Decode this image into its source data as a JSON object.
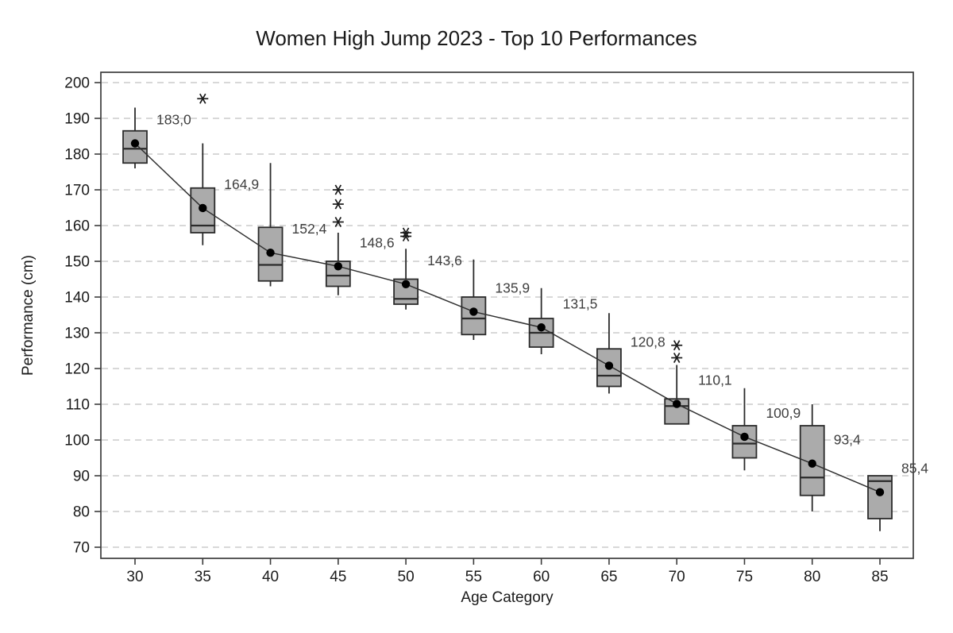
{
  "figure": {
    "title": "Women High Jump 2023 - Top 10 Performances",
    "x_axis_label": "Age Category",
    "y_axis_label": "Performance (cm)"
  },
  "chart_data": {
    "type": "boxplot",
    "title": "Women High Jump 2023 - Top 10 Performances",
    "xlabel": "Age Category",
    "ylabel": "Performance (cm)",
    "ylim": [
      65,
      203
    ],
    "y_ticks": [
      200,
      190,
      180,
      170,
      160,
      150,
      140,
      130,
      120,
      110,
      100,
      90,
      80,
      70
    ],
    "grid": "horizontal-dashed",
    "legend": "none",
    "mean_connecting_line": true,
    "categories": [
      "30",
      "35",
      "40",
      "45",
      "50",
      "55",
      "60",
      "65",
      "70",
      "75",
      "80",
      "85"
    ],
    "boxes": [
      {
        "category": "30",
        "whisker_low": 176,
        "q1": 177.5,
        "median": 181.5,
        "q3": 186.5,
        "whisker_high": 193,
        "mean": 183.0,
        "mean_label": "183,0",
        "outliers": []
      },
      {
        "category": "35",
        "whisker_low": 154.5,
        "q1": 158,
        "median": 160,
        "q3": 170.5,
        "whisker_high": 183,
        "mean": 164.9,
        "mean_label": "164,9",
        "outliers": [
          195.5
        ]
      },
      {
        "category": "40",
        "whisker_low": 143,
        "q1": 144.5,
        "median": 149,
        "q3": 159.5,
        "whisker_high": 177.5,
        "mean": 152.4,
        "mean_label": "152,4",
        "outliers": []
      },
      {
        "category": "45",
        "whisker_low": 140.5,
        "q1": 143,
        "median": 146,
        "q3": 150,
        "whisker_high": 158,
        "mean": 148.6,
        "mean_label": "148,6",
        "outliers": [
          170,
          166,
          161
        ]
      },
      {
        "category": "50",
        "whisker_low": 136.5,
        "q1": 138,
        "median": 139.5,
        "q3": 145,
        "whisker_high": 153.5,
        "mean": 143.6,
        "mean_label": "143,6",
        "outliers": [
          158,
          157
        ]
      },
      {
        "category": "55",
        "whisker_low": 128,
        "q1": 129.5,
        "median": 134,
        "q3": 140,
        "whisker_high": 150.5,
        "mean": 135.9,
        "mean_label": "135,9",
        "outliers": []
      },
      {
        "category": "60",
        "whisker_low": 124,
        "q1": 126,
        "median": 130,
        "q3": 134,
        "whisker_high": 142.5,
        "mean": 131.5,
        "mean_label": "131,5",
        "outliers": []
      },
      {
        "category": "65",
        "whisker_low": 113,
        "q1": 115,
        "median": 118,
        "q3": 125.5,
        "whisker_high": 135.5,
        "mean": 120.8,
        "mean_label": "120,8",
        "outliers": []
      },
      {
        "category": "70",
        "whisker_low": 104.5,
        "q1": 104.5,
        "median": 109.5,
        "q3": 111.5,
        "whisker_high": 121,
        "mean": 110.1,
        "mean_label": "110,1",
        "outliers": [
          126.5,
          123
        ]
      },
      {
        "category": "75",
        "whisker_low": 91.5,
        "q1": 95,
        "median": 99,
        "q3": 104,
        "whisker_high": 114.5,
        "mean": 100.9,
        "mean_label": "100,9",
        "outliers": []
      },
      {
        "category": "80",
        "whisker_low": 80,
        "q1": 84.5,
        "median": 89.5,
        "q3": 104,
        "whisker_high": 110,
        "mean": 93.4,
        "mean_label": "93,4",
        "outliers": []
      },
      {
        "category": "85",
        "whisker_low": 74.5,
        "q1": 78,
        "median": 88.5,
        "q3": 90,
        "whisker_high": 90,
        "mean": 85.4,
        "mean_label": "85,4",
        "outliers": []
      }
    ]
  },
  "colors": {
    "background": "#ffffff",
    "box_fill": "#ababab",
    "box_stroke": "#2b2b2b",
    "median_stroke": "#2b2b2b",
    "whisker_stroke": "#2b2b2b",
    "grid": "#cbcbcb",
    "axis": "#3c3c3c",
    "tick_text": "#1a1a1a",
    "mean_point": "#000000",
    "mean_line": "#303030",
    "mean_label_text": "#3f3f3f",
    "outlier": "#1a1a1a"
  }
}
